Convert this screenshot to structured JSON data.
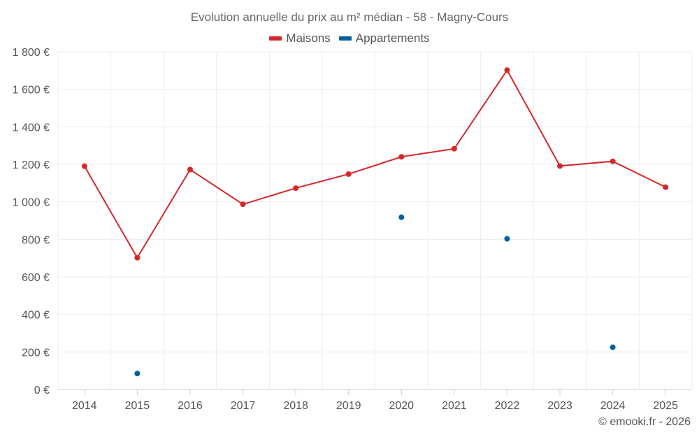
{
  "chart_data": {
    "type": "line",
    "title": "Evolution annuelle du prix au m² médian - 58 - Magny-Cours",
    "categories": [
      "2014",
      "2015",
      "2016",
      "2017",
      "2018",
      "2019",
      "2020",
      "2021",
      "2022",
      "2023",
      "2024",
      "2025"
    ],
    "ylim": [
      0,
      1800
    ],
    "yticks": [
      0,
      200,
      400,
      600,
      800,
      1000,
      1200,
      1400,
      1600,
      1800
    ],
    "ytick_labels": [
      "0 €",
      "200 €",
      "400 €",
      "600 €",
      "800 €",
      "1 000 €",
      "1 200 €",
      "1 400 €",
      "1 600 €",
      "1 800 €"
    ],
    "series": [
      {
        "name": "Maisons",
        "color": "#d62728",
        "values": [
          1190,
          702,
          1172,
          987,
          1073,
          1148,
          1240,
          1283,
          1702,
          1191,
          1216,
          1078
        ]
      },
      {
        "name": "Appartements",
        "color": "#00629b",
        "values": [
          null,
          85,
          null,
          null,
          null,
          null,
          918,
          null,
          803,
          null,
          225,
          null
        ]
      }
    ],
    "legend_position": "top-center",
    "credit": "© emooki.fr - 2026"
  }
}
